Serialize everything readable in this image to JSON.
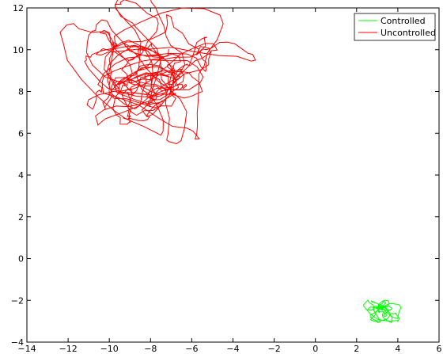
{
  "chart_data": {
    "type": "line",
    "xlim": [
      -14,
      6
    ],
    "ylim": [
      -4,
      12
    ],
    "x_ticks": [
      -14,
      -12,
      -10,
      -8,
      -6,
      -4,
      -2,
      0,
      2,
      4,
      6
    ],
    "y_ticks": [
      -4,
      -2,
      0,
      2,
      4,
      6,
      8,
      10,
      12
    ],
    "x_tick_labels": [
      "−14",
      "−12",
      "−10",
      "−8",
      "−6",
      "−4",
      "−2",
      "0",
      "2",
      "4",
      "6"
    ],
    "y_tick_labels": [
      "−4",
      "−2",
      "0",
      "2",
      "4",
      "6",
      "8",
      "10",
      "12"
    ],
    "grid": false,
    "legend_position": "top-right",
    "series": [
      {
        "name": "Controlled",
        "color": "#00ff00",
        "center": [
          3.2,
          -2.5
        ],
        "spread_x": 0.6,
        "spread_y": 0.4,
        "points": 220
      },
      {
        "name": "Uncontrolled",
        "color": "#ff0000",
        "center": [
          -7.8,
          8.8
        ],
        "spread_x": 2.8,
        "spread_y": 2.2,
        "points": 600
      }
    ]
  }
}
